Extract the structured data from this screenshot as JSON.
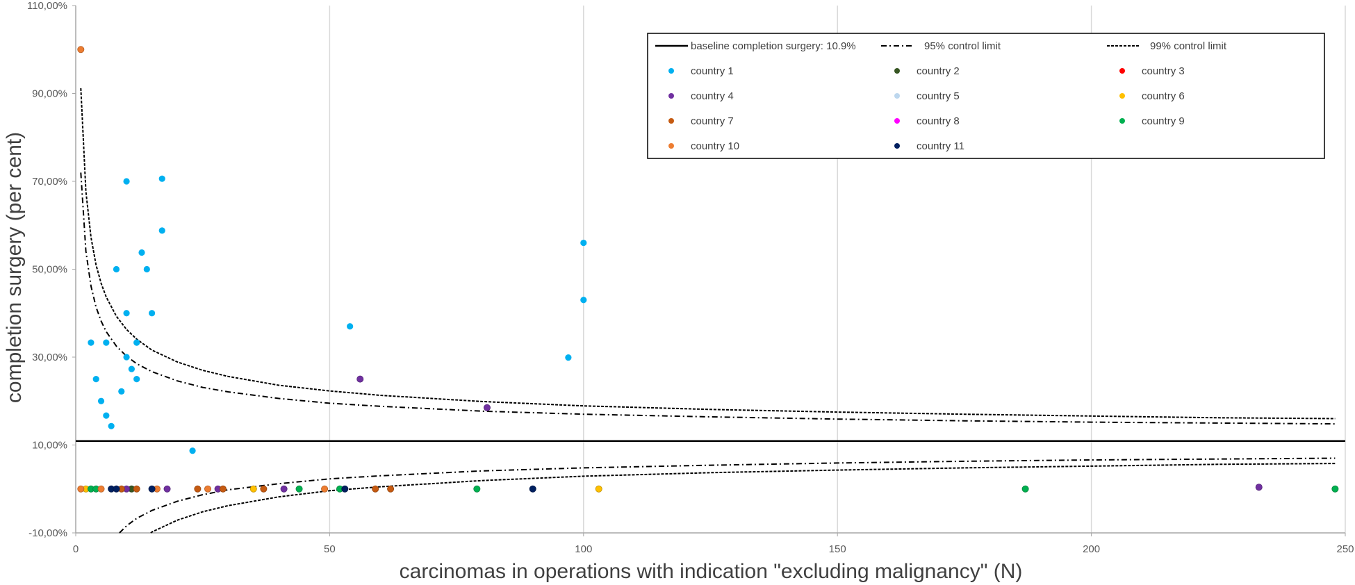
{
  "chart_data": {
    "type": "scatter",
    "title": "",
    "xlabel": "carcinomas in operations with indication \"excluding malignancy\" (N)",
    "ylabel": "completion surgery (per cent)",
    "xlim": [
      0,
      250
    ],
    "ylim": [
      -10,
      110
    ],
    "x_ticks": [
      "0",
      "50",
      "100",
      "150",
      "200",
      "250"
    ],
    "x_tick_values": [
      0,
      50,
      100,
      150,
      200,
      250
    ],
    "y_ticks": [
      "110,00%",
      "90,00%",
      "70,00%",
      "50,00%",
      "30,00%",
      "10,00%",
      "-10,00%"
    ],
    "y_tick_values": [
      110,
      90,
      70,
      50,
      30,
      10,
      -10
    ],
    "grid": "vertical gridlines only",
    "legend_position": "top-right",
    "reference_lines": {
      "baseline": {
        "label": "baseline completion surgery: 10.9%",
        "value": 10.9,
        "style": "solid"
      },
      "limit95": {
        "label": "95% control limit",
        "style": "dash-dot",
        "x": [
          1,
          2,
          3,
          4,
          5,
          6,
          8,
          10,
          12,
          15,
          20,
          25,
          30,
          40,
          50,
          60,
          80,
          100,
          125,
          150,
          175,
          200,
          225,
          248
        ],
        "upper": [
          72.0,
          54.1,
          46.2,
          41.4,
          38.2,
          35.8,
          32.5,
          30.2,
          28.5,
          26.7,
          24.6,
          23.1,
          22.1,
          20.6,
          19.5,
          18.8,
          17.7,
          17.0,
          16.4,
          15.9,
          15.5,
          15.2,
          15.0,
          14.8
        ],
        "lower": [
          -50.2,
          -32.3,
          -24.4,
          -19.6,
          -16.4,
          -14.0,
          -10.7,
          -8.4,
          -6.7,
          -4.9,
          -2.8,
          -1.3,
          -0.2,
          1.2,
          2.3,
          3.0,
          4.1,
          4.8,
          5.4,
          5.9,
          6.3,
          6.6,
          6.8,
          7.0
        ]
      },
      "limit99": {
        "label": "99% control limit",
        "style": "dashed",
        "x": [
          1,
          2,
          3,
          4,
          5,
          6,
          8,
          10,
          12,
          15,
          20,
          25,
          30,
          40,
          50,
          60,
          80,
          100,
          125,
          150,
          175,
          200,
          225,
          248
        ],
        "upper": [
          91.2,
          67.7,
          57.3,
          51.0,
          46.8,
          43.7,
          39.3,
          36.3,
          34.1,
          31.6,
          28.9,
          27.0,
          25.6,
          23.6,
          22.3,
          21.3,
          19.9,
          18.9,
          18.1,
          17.5,
          17.0,
          16.6,
          16.2,
          16.0
        ],
        "lower": [
          -69.4,
          -45.9,
          -35.5,
          -29.2,
          -25.0,
          -21.9,
          -17.5,
          -14.5,
          -12.3,
          -9.8,
          -7.1,
          -5.2,
          -3.8,
          -1.8,
          -0.4,
          0.5,
          1.9,
          2.9,
          3.7,
          4.3,
          4.8,
          5.2,
          5.6,
          5.8
        ]
      }
    },
    "series": [
      {
        "name": "country 1",
        "color": "#00b0f0",
        "points": [
          [
            3,
            33.3
          ],
          [
            4,
            25
          ],
          [
            5,
            20
          ],
          [
            6,
            16.7
          ],
          [
            6,
            33.3
          ],
          [
            7,
            14.3
          ],
          [
            8,
            50
          ],
          [
            9,
            22.2
          ],
          [
            10,
            70
          ],
          [
            10,
            40
          ],
          [
            10,
            30
          ],
          [
            11,
            27.3
          ],
          [
            12,
            33.3
          ],
          [
            12,
            25
          ],
          [
            13,
            53.8
          ],
          [
            14,
            50
          ],
          [
            15,
            40
          ],
          [
            17,
            70.6
          ],
          [
            17,
            58.8
          ],
          [
            23,
            8.7
          ],
          [
            54,
            37
          ],
          [
            97,
            29.9
          ],
          [
            100,
            56
          ],
          [
            100,
            43
          ]
        ]
      },
      {
        "name": "country 2",
        "color": "#375623",
        "points": [
          [
            11,
            0
          ]
        ]
      },
      {
        "name": "country 3",
        "color": "#ff0000",
        "points": []
      },
      {
        "name": "country 4",
        "color": "#7030a0",
        "points": [
          [
            10,
            0
          ],
          [
            18,
            0
          ],
          [
            28,
            0
          ],
          [
            41,
            0
          ],
          [
            56,
            25
          ],
          [
            81,
            18.5
          ],
          [
            233,
            0.4
          ]
        ]
      },
      {
        "name": "country 5",
        "color": "#bdd7ee",
        "points": []
      },
      {
        "name": "country 6",
        "color": "#ffc000",
        "points": [
          [
            2,
            0
          ],
          [
            35,
            0
          ],
          [
            103,
            0
          ]
        ]
      },
      {
        "name": "country 7",
        "color": "#c55a11",
        "points": [
          [
            9,
            0
          ],
          [
            12,
            0
          ],
          [
            24,
            0
          ],
          [
            29,
            0
          ],
          [
            37,
            0
          ],
          [
            59,
            0
          ],
          [
            62,
            0
          ]
        ]
      },
      {
        "name": "country 8",
        "color": "#ff00ff",
        "points": []
      },
      {
        "name": "country 9",
        "color": "#00b050",
        "points": [
          [
            3,
            0
          ],
          [
            4,
            0
          ],
          [
            44,
            0
          ],
          [
            52,
            0
          ],
          [
            79,
            0
          ],
          [
            187,
            0
          ],
          [
            248,
            0
          ]
        ]
      },
      {
        "name": "country 10",
        "color": "#ed7d31",
        "points": [
          [
            1,
            100
          ],
          [
            1,
            0
          ],
          [
            5,
            0
          ],
          [
            16,
            0
          ],
          [
            26,
            0
          ],
          [
            49,
            0
          ]
        ]
      },
      {
        "name": "country 11",
        "color": "#002060",
        "points": [
          [
            7,
            0
          ],
          [
            8,
            0
          ],
          [
            15,
            0
          ],
          [
            53,
            0
          ],
          [
            90,
            0
          ]
        ]
      }
    ]
  }
}
